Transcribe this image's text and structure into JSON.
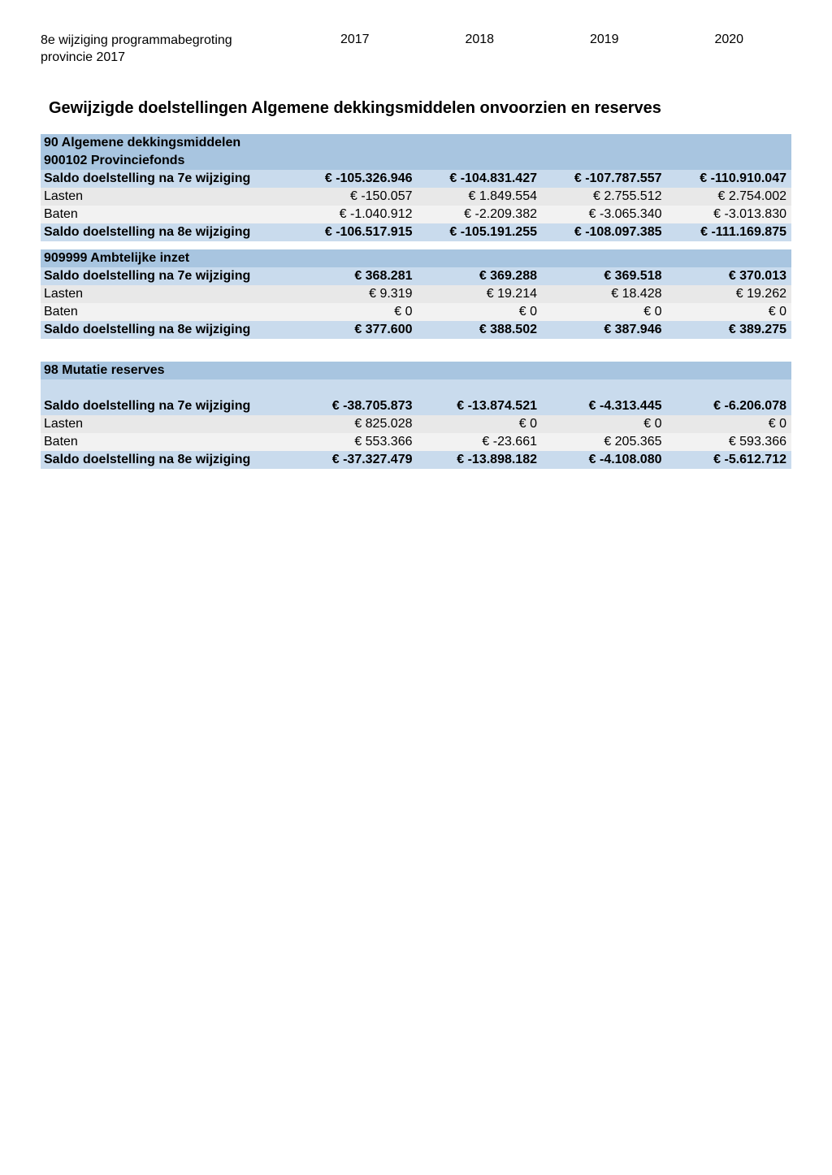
{
  "header": {
    "label_line1": "8e wijziging programmabegroting",
    "label_line2": "provincie 2017",
    "years": [
      "2017",
      "2018",
      "2019",
      "2020"
    ]
  },
  "page_title": "Gewijzigde doelstellingen  Algemene dekkingsmiddelen onvoorzien en reserves",
  "section1": {
    "header": "90 Algemene dekkingsmiddelen",
    "sub1": {
      "header": "900102 Provinciefonds",
      "rows": [
        {
          "label": "Saldo doelstelling na 7e wijziging",
          "bold": true,
          "bg": "bg-blue-light",
          "vals": [
            "€ -105.326.946",
            "€ -104.831.427",
            "€ -107.787.557",
            "€ -110.910.047"
          ]
        },
        {
          "label": "Lasten",
          "bold": false,
          "bg": "bg-gray-light",
          "vals": [
            "€ -150.057",
            "€ 1.849.554",
            "€ 2.755.512",
            "€ 2.754.002"
          ]
        },
        {
          "label": "Baten",
          "bold": false,
          "bg": "bg-gray-lighter",
          "vals": [
            "€ -1.040.912",
            "€ -2.209.382",
            "€ -3.065.340",
            "€ -3.013.830"
          ]
        },
        {
          "label": "Saldo doelstelling na 8e wijziging",
          "bold": true,
          "bg": "bg-blue-light",
          "vals": [
            "€ -106.517.915",
            "€ -105.191.255",
            "€ -108.097.385",
            "€ -111.169.875"
          ]
        }
      ]
    },
    "sub2": {
      "header": "909999 Ambtelijke inzet",
      "rows": [
        {
          "label": "Saldo doelstelling na 7e wijziging",
          "bold": true,
          "bg": "bg-blue-light",
          "vals": [
            "€ 368.281",
            "€ 369.288",
            "€ 369.518",
            "€ 370.013"
          ]
        },
        {
          "label": "Lasten",
          "bold": false,
          "bg": "bg-gray-light",
          "vals": [
            "€ 9.319",
            "€ 19.214",
            "€ 18.428",
            "€ 19.262"
          ]
        },
        {
          "label": "Baten",
          "bold": false,
          "bg": "bg-gray-lighter",
          "vals": [
            "€ 0",
            "€ 0",
            "€ 0",
            "€ 0"
          ]
        },
        {
          "label": "Saldo doelstelling na 8e wijziging",
          "bold": true,
          "bg": "bg-blue-light",
          "vals": [
            "€ 377.600",
            "€ 388.502",
            "€ 387.946",
            "€ 389.275"
          ]
        }
      ]
    }
  },
  "section2": {
    "header": "98 Mutatie reserves",
    "rows": [
      {
        "label": "Saldo doelstelling na 7e wijziging",
        "bold": true,
        "bg": "bg-blue-light",
        "vals": [
          "€ -38.705.873",
          "€ -13.874.521",
          "€ -4.313.445",
          "€ -6.206.078"
        ]
      },
      {
        "label": "Lasten",
        "bold": false,
        "bg": "bg-gray-light",
        "vals": [
          "€ 825.028",
          "€ 0",
          "€ 0",
          "€ 0"
        ]
      },
      {
        "label": "Baten",
        "bold": false,
        "bg": "bg-gray-lighter",
        "vals": [
          "€ 553.366",
          "€ -23.661",
          "€ 205.365",
          "€ 593.366"
        ]
      },
      {
        "label": "Saldo doelstelling na 8e wijziging",
        "bold": true,
        "bg": "bg-blue-light",
        "vals": [
          "€ -37.327.479",
          "€ -13.898.182",
          "€ -4.108.080",
          "€ -5.612.712"
        ]
      }
    ]
  },
  "colors": {
    "blue_dark": "#a8c5e0",
    "blue_light": "#c9dbed",
    "gray_light": "#e8e8e8",
    "gray_lighter": "#f2f2f2"
  }
}
